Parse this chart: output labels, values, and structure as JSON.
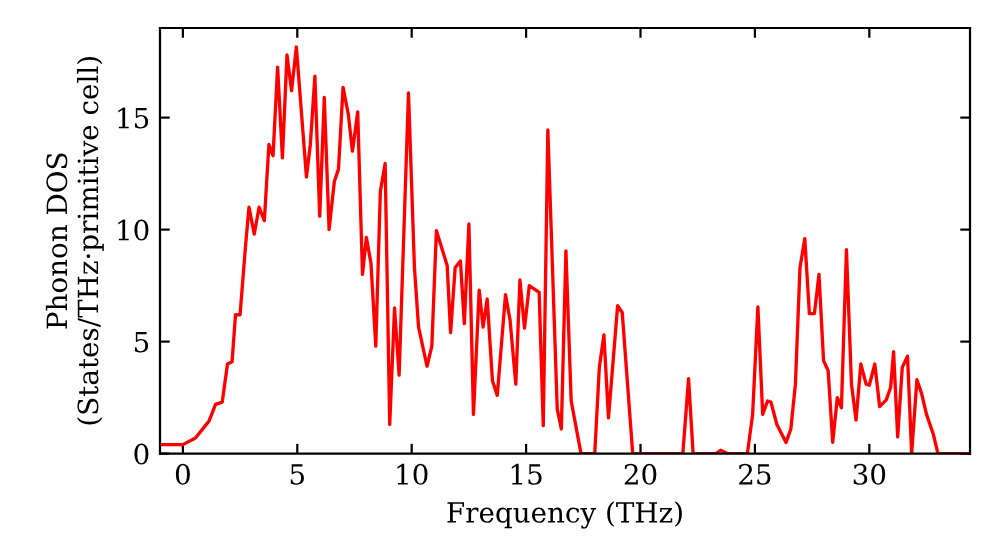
{
  "chart_data": {
    "type": "line",
    "xlabel": "Frequency (THz)",
    "ylabel": "Phonon DOS\n(States/THz·primitive cell)",
    "xlim": [
      -1,
      34.4
    ],
    "ylim": [
      0,
      19
    ],
    "xticks": [
      0,
      5,
      10,
      15,
      20,
      25,
      30
    ],
    "yticks": [
      0,
      5,
      10,
      15
    ],
    "grid": false,
    "marker": "none",
    "line_style": "solid",
    "series": [
      {
        "color": "#ff0000",
        "x": [
          -1,
          0,
          0.55,
          1.14,
          1.43,
          1.72,
          1.95,
          2.15,
          2.3,
          2.5,
          2.74,
          2.89,
          3.12,
          3.33,
          3.56,
          3.76,
          3.94,
          4.14,
          4.35,
          4.55,
          4.75,
          4.96,
          5.4,
          5.57,
          5.77,
          5.98,
          6.18,
          6.39,
          6.62,
          6.8,
          7.0,
          7.23,
          7.41,
          7.64,
          7.85,
          8.02,
          8.22,
          8.43,
          8.63,
          8.84,
          9.04,
          9.25,
          9.45,
          9.86,
          10.12,
          10.3,
          10.67,
          10.88,
          11.08,
          11.55,
          11.7,
          11.9,
          12.13,
          12.3,
          12.5,
          12.7,
          12.95,
          13.12,
          13.3,
          13.53,
          13.74,
          14.1,
          14.3,
          14.55,
          14.73,
          14.93,
          15.14,
          15.57,
          15.75,
          15.95,
          16.36,
          16.54,
          16.74,
          16.97,
          17.4,
          18.0,
          18.2,
          18.4,
          18.6,
          19.0,
          19.2,
          19.66,
          21.85,
          22.1,
          22.3,
          23.3,
          23.5,
          23.8,
          24.67,
          24.9,
          25.13,
          25.34,
          25.55,
          25.7,
          25.96,
          26.36,
          26.57,
          26.77,
          26.97,
          27.18,
          27.38,
          27.6,
          27.8,
          28.0,
          28.2,
          28.4,
          28.6,
          28.78,
          29.0,
          29.22,
          29.42,
          29.63,
          29.86,
          30.0,
          30.24,
          30.45,
          30.74,
          30.93,
          31.06,
          31.24,
          31.44,
          31.67,
          31.85,
          32.08,
          32.28,
          32.5,
          32.8,
          33.0,
          34.4
        ],
        "values": [
          0.4,
          0.4,
          0.7,
          1.45,
          2.2,
          2.3,
          4.0,
          4.1,
          6.2,
          6.2,
          9.3,
          11.0,
          9.8,
          11.0,
          10.4,
          13.8,
          13.3,
          17.25,
          13.2,
          17.8,
          16.2,
          18.15,
          12.35,
          13.8,
          16.85,
          10.6,
          15.9,
          10.0,
          12.15,
          12.7,
          16.35,
          15.15,
          13.5,
          15.25,
          8.0,
          9.65,
          8.5,
          4.8,
          11.7,
          12.95,
          1.3,
          6.5,
          3.5,
          16.1,
          8.3,
          5.65,
          3.9,
          4.8,
          9.95,
          8.4,
          5.4,
          8.3,
          8.6,
          5.8,
          10.25,
          1.75,
          7.3,
          5.65,
          6.9,
          3.25,
          2.6,
          7.1,
          5.95,
          3.1,
          7.75,
          5.6,
          7.5,
          7.2,
          1.25,
          14.45,
          2.0,
          1.1,
          9.05,
          2.35,
          0,
          0,
          3.85,
          5.3,
          1.6,
          6.6,
          6.3,
          0,
          0,
          3.35,
          0,
          0,
          0.15,
          0,
          0,
          1.75,
          6.55,
          1.75,
          2.35,
          2.3,
          1.3,
          0.5,
          1.1,
          3.1,
          8.3,
          9.6,
          6.25,
          6.25,
          8.0,
          4.15,
          3.7,
          0.5,
          2.5,
          2.05,
          9.1,
          3.1,
          1.5,
          4.0,
          3.1,
          3.05,
          4.0,
          2.1,
          2.4,
          2.95,
          4.55,
          0.75,
          3.85,
          4.35,
          0,
          3.3,
          2.7,
          1.75,
          0.85,
          0,
          0
        ]
      }
    ]
  }
}
